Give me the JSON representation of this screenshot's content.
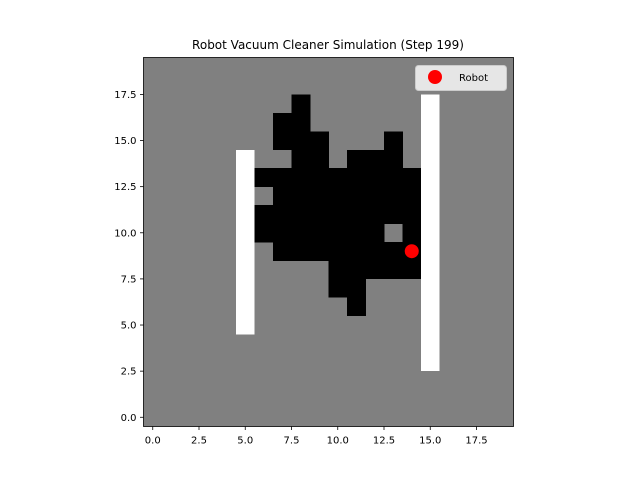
{
  "chart_data": {
    "type": "heatmap",
    "title": "Robot Vacuum Cleaner Simulation (Step 199)",
    "xlabel": "",
    "ylabel": "",
    "xlim": [
      -0.5,
      19.5
    ],
    "ylim": [
      -0.5,
      19.5
    ],
    "origin": "lower",
    "grid": false,
    "x_ticks": [
      0.0,
      2.5,
      5.0,
      7.5,
      10.0,
      12.5,
      15.0,
      17.5
    ],
    "x_tick_labels": [
      "0.0",
      "2.5",
      "5.0",
      "7.5",
      "10.0",
      "12.5",
      "15.0",
      "17.5"
    ],
    "y_ticks": [
      0.0,
      2.5,
      5.0,
      7.5,
      10.0,
      12.5,
      15.0,
      17.5
    ],
    "y_tick_labels": [
      "0.0",
      "2.5",
      "5.0",
      "7.5",
      "10.0",
      "12.5",
      "15.0",
      "17.5"
    ],
    "cell_states": {
      "uncleaned": "#808080",
      "cleaned": "#000000",
      "obstacle": "#ffffff"
    },
    "obstacles": [
      {
        "x": [
          5,
          5
        ],
        "y": [
          5,
          14
        ]
      },
      {
        "x": [
          15,
          15
        ],
        "y": [
          3,
          17
        ]
      }
    ],
    "cleaned_rows": [
      {
        "y": 6,
        "x": [
          11,
          11
        ]
      },
      {
        "y": 7,
        "x": [
          10,
          11
        ]
      },
      {
        "y": 8,
        "x": [
          10,
          12
        ],
        "x2": [
          13,
          14
        ]
      },
      {
        "y": 9,
        "x": [
          7,
          14
        ]
      },
      {
        "y": 10,
        "x": [
          6,
          12
        ],
        "x2": [
          14,
          14
        ]
      },
      {
        "y": 11,
        "x": [
          6,
          14
        ]
      },
      {
        "y": 12,
        "x": [
          7,
          14
        ]
      },
      {
        "y": 13,
        "x": [
          6,
          14
        ]
      },
      {
        "y": 14,
        "x": [
          8,
          9
        ],
        "x2": [
          11,
          13
        ]
      },
      {
        "y": 15,
        "x": [
          7,
          9
        ],
        "x2": [
          13,
          13
        ]
      },
      {
        "y": 16,
        "x": [
          7,
          8
        ]
      },
      {
        "y": 17,
        "x": [
          8,
          8
        ]
      }
    ],
    "robot": {
      "x": 14,
      "y": 9,
      "color": "#ff0000",
      "label": "Robot"
    },
    "legend": {
      "position": "upper-right",
      "entries": [
        "Robot"
      ]
    }
  }
}
